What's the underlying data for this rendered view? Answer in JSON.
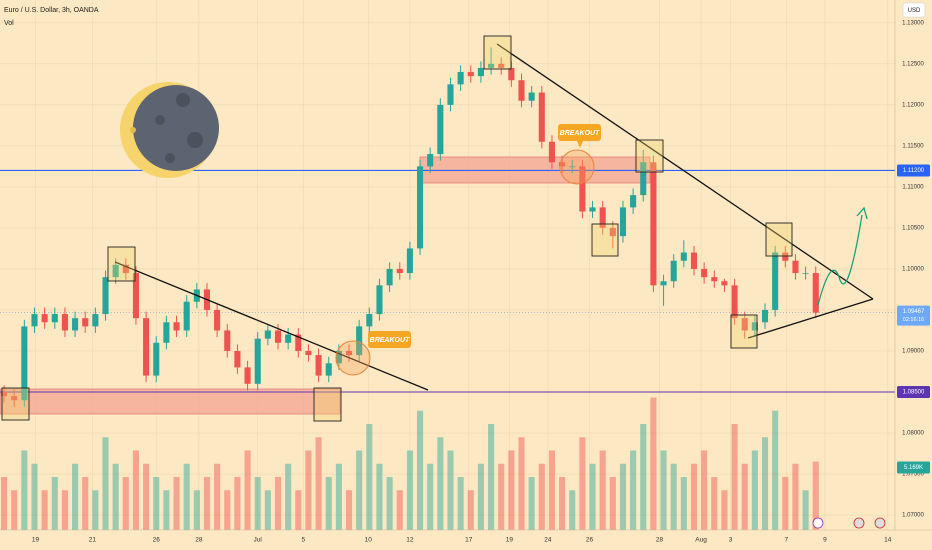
{
  "chart_data": {
    "type": "candlestick",
    "title": "Euro / U.S. Dollar, 3h, OANDA",
    "volume_title": "Vol",
    "currency": "USD",
    "up_color": "#26a69a",
    "down_color": "#ef5350",
    "grid": true,
    "xlim": [
      -0.4,
      88.6
    ],
    "xticks": [
      {
        "value": 3.1,
        "label": "19"
      },
      {
        "value": 8.7,
        "label": "21"
      },
      {
        "value": 15,
        "label": "26"
      },
      {
        "value": 19.2,
        "label": "28"
      },
      {
        "value": 25,
        "label": "Jul"
      },
      {
        "value": 29.5,
        "label": "5"
      },
      {
        "value": 35.9,
        "label": "10"
      },
      {
        "value": 40,
        "label": "12"
      },
      {
        "value": 45.8,
        "label": "17"
      },
      {
        "value": 49.8,
        "label": "19"
      },
      {
        "value": 53.6,
        "label": "24"
      },
      {
        "value": 57.7,
        "label": "26"
      },
      {
        "value": 64.6,
        "label": "28"
      },
      {
        "value": 68.7,
        "label": "Aug"
      },
      {
        "value": 71.6,
        "label": "3"
      },
      {
        "value": 77.1,
        "label": "7"
      },
      {
        "value": 80.9,
        "label": "9"
      },
      {
        "value": 87.1,
        "label": "14"
      }
    ],
    "ylim": [
      1.06818,
      1.13278
    ],
    "yticks": [
      {
        "value": 1.07,
        "label": "1.07000"
      },
      {
        "value": 1.075,
        "label": "1.07500"
      },
      {
        "value": 1.08,
        "label": "1.08000"
      },
      {
        "value": 1.085,
        "label": "1.08500"
      },
      {
        "value": 1.09,
        "label": "1.09000"
      },
      {
        "value": 1.095,
        "label": "1.09500"
      },
      {
        "value": 1.1,
        "label": "1.10000"
      },
      {
        "value": 1.105,
        "label": "1.10500"
      },
      {
        "value": 1.11,
        "label": "1.11000"
      },
      {
        "value": 1.115,
        "label": "1.11500"
      },
      {
        "value": 1.12,
        "label": "1.12000"
      },
      {
        "value": 1.125,
        "label": "1.12500"
      },
      {
        "value": 1.13,
        "label": "1.13000"
      }
    ],
    "open": [
      1.085,
      1.0845,
      1.084,
      1.093,
      1.0945,
      1.0935,
      1.0945,
      1.0925,
      1.094,
      1.093,
      1.0945,
      1.099,
      1.1005,
      1.0995,
      1.094,
      1.087,
      1.091,
      1.0935,
      1.0925,
      1.096,
      1.0975,
      1.095,
      1.0925,
      1.09,
      1.088,
      1.086,
      1.0915,
      1.0925,
      1.091,
      1.092,
      1.09,
      1.0895,
      1.087,
      1.0885,
      1.09,
      1.0895,
      1.093,
      1.0945,
      1.098,
      1.1,
      1.0995,
      1.1025,
      1.1125,
      1.114,
      1.12,
      1.1225,
      1.124,
      1.1235,
      1.1245,
      1.125,
      1.1245,
      1.123,
      1.1205,
      1.1215,
      1.1155,
      1.113,
      1.1125,
      1.1125,
      1.107,
      1.1075,
      1.105,
      1.104,
      1.1075,
      1.109,
      1.113,
      1.098,
      1.0985,
      1.101,
      1.102,
      1.1,
      1.099,
      1.0985,
      1.098,
      1.094,
      1.0925,
      1.0935,
      1.095,
      1.102,
      1.101,
      1.0995,
      1.0995
    ],
    "high": [
      1.0858,
      1.0853,
      1.0938,
      1.0953,
      1.0953,
      1.0953,
      1.0953,
      1.0948,
      1.0948,
      1.0953,
      1.0998,
      1.1013,
      1.1013,
      1.1003,
      1.0948,
      1.0918,
      1.0943,
      1.0943,
      1.0968,
      1.0983,
      1.0983,
      1.0958,
      1.0933,
      1.0908,
      1.0888,
      1.0923,
      1.0933,
      1.0933,
      1.0928,
      1.0928,
      1.0908,
      1.0903,
      1.0893,
      1.0908,
      1.0908,
      1.0938,
      1.0953,
      1.0988,
      1.1008,
      1.1008,
      1.1033,
      1.1133,
      1.1148,
      1.1208,
      1.1233,
      1.1248,
      1.1248,
      1.1253,
      1.127,
      1.1258,
      1.1253,
      1.1238,
      1.1223,
      1.1223,
      1.1163,
      1.1138,
      1.1133,
      1.1133,
      1.1083,
      1.1083,
      1.1058,
      1.1083,
      1.1098,
      1.1145,
      1.1138,
      1.0993,
      1.1018,
      1.1035,
      1.1028,
      1.1008,
      1.0998,
      1.0988,
      1.0988,
      1.0948,
      1.0943,
      1.0958,
      1.1028,
      1.1028,
      1.1018,
      1.1003,
      1.1003
    ],
    "low": [
      1.0837,
      1.0832,
      1.0832,
      1.0922,
      1.0927,
      1.0927,
      1.0917,
      1.0917,
      1.0922,
      1.0922,
      1.0937,
      1.0982,
      1.0987,
      1.0932,
      1.0862,
      1.0862,
      1.0902,
      1.0917,
      1.0917,
      1.0952,
      1.0942,
      1.0917,
      1.0892,
      1.0872,
      1.0852,
      1.0852,
      1.0907,
      1.0902,
      1.0902,
      1.0892,
      1.0887,
      1.0862,
      1.0862,
      1.0877,
      1.0887,
      1.0887,
      1.0922,
      1.0937,
      1.0972,
      1.0987,
      1.0987,
      1.1017,
      1.1117,
      1.1132,
      1.1192,
      1.1217,
      1.1227,
      1.1227,
      1.1237,
      1.1237,
      1.1222,
      1.1197,
      1.1197,
      1.1147,
      1.1122,
      1.1117,
      1.1117,
      1.1062,
      1.1062,
      1.1042,
      1.1025,
      1.1032,
      1.1067,
      1.1082,
      1.0972,
      1.0955,
      1.0977,
      1.1002,
      1.0992,
      1.0982,
      1.0977,
      1.0972,
      1.0932,
      1.0915,
      1.0917,
      1.0927,
      1.0942,
      1.1002,
      1.0987,
      1.0987,
      1.094
    ],
    "close": [
      1.0845,
      1.084,
      1.093,
      1.0945,
      1.0935,
      1.0945,
      1.0925,
      1.094,
      1.093,
      1.0945,
      1.099,
      1.1005,
      1.0995,
      1.094,
      1.087,
      1.091,
      1.0935,
      1.0925,
      1.096,
      1.0975,
      1.095,
      1.0925,
      1.09,
      1.088,
      1.086,
      1.0915,
      1.0925,
      1.091,
      1.092,
      1.09,
      1.0895,
      1.087,
      1.0885,
      1.09,
      1.0895,
      1.093,
      1.0945,
      1.098,
      1.1,
      1.0995,
      1.1025,
      1.1125,
      1.114,
      1.12,
      1.1225,
      1.124,
      1.1235,
      1.1245,
      1.125,
      1.1245,
      1.123,
      1.1205,
      1.1215,
      1.1155,
      1.113,
      1.1125,
      1.1125,
      1.107,
      1.1075,
      1.105,
      1.104,
      1.1075,
      1.109,
      1.113,
      1.098,
      1.0985,
      1.101,
      1.102,
      1.1,
      1.099,
      1.0985,
      1.098,
      1.094,
      1.0925,
      1.0935,
      1.095,
      1.102,
      1.101,
      1.0995,
      1.0995,
      1.09467
    ],
    "volume": {
      "lim": [
        0,
        40
      ],
      "values": [
        4,
        3,
        6,
        5,
        3,
        4,
        3,
        5,
        4,
        3,
        7,
        5,
        4,
        6,
        5,
        4,
        3,
        4,
        5,
        3,
        4,
        5,
        3,
        4,
        6,
        4,
        3,
        4,
        5,
        3,
        6,
        7,
        4,
        5,
        3,
        6,
        8,
        5,
        4,
        3,
        6,
        9,
        5,
        7,
        6,
        4,
        3,
        5,
        8,
        5,
        6,
        7,
        4,
        5,
        6,
        4,
        3,
        7,
        5,
        6,
        4,
        5,
        6,
        8,
        10,
        6,
        5,
        4,
        5,
        6,
        4,
        3,
        8,
        5,
        6,
        7,
        9,
        4,
        5,
        3,
        5.169
      ],
      "last_label": {
        "value": 5.169,
        "label": "5.169K"
      }
    },
    "levels": [
      {
        "value": 1.112,
        "label": "1.11200",
        "color": "#2962ff"
      },
      {
        "value": 1.085,
        "label": "1.08500",
        "color": "#5e35b1"
      }
    ],
    "last_price": {
      "value": 1.09467,
      "label": "1.09467",
      "countdown": "02:16:16"
    },
    "annotations": [
      "BREAKOUT",
      "BREAKOUT"
    ]
  }
}
